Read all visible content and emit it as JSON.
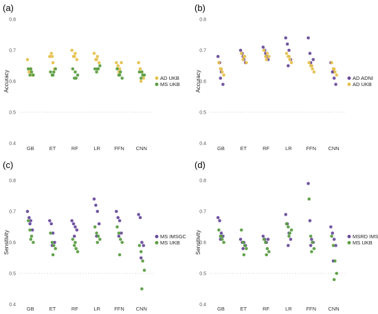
{
  "colors": {
    "purple": "#6a4c9c",
    "green": "#5c9e44",
    "gold": "#e6c14f",
    "grid": "#d9d9d9"
  },
  "chart_data": [
    {
      "panel": "(a)",
      "type": "scatter",
      "ylabel": "Accuracy",
      "ylim": [
        0.4,
        0.8
      ],
      "yticks": [
        "0.4",
        "0.5",
        "0.6",
        "0.7",
        "0.8"
      ],
      "categories": [
        "GB",
        "ET",
        "RF",
        "LR",
        "FFN",
        "CNN"
      ],
      "legend_position": "right",
      "series": [
        {
          "name": "AD UKB",
          "color": "gold",
          "values": [
            [
              0.67,
              0.63,
              0.64,
              0.62,
              0.63
            ],
            [
              0.68,
              0.69,
              0.66,
              0.64,
              0.68
            ],
            [
              0.7,
              0.68,
              0.69,
              0.67,
              0.68
            ],
            [
              0.69,
              0.67,
              0.68,
              0.66,
              0.67
            ],
            [
              0.66,
              0.65,
              0.64,
              0.66,
              0.63
            ],
            [
              0.66,
              0.64,
              0.63,
              0.61,
              0.6
            ]
          ]
        },
        {
          "name": "MS UKB",
          "color": "green",
          "values": [
            [
              0.64,
              0.62,
              0.63,
              0.62,
              0.64
            ],
            [
              0.63,
              0.62,
              0.63,
              0.64,
              0.62
            ],
            [
              0.64,
              0.61,
              0.61,
              0.62,
              0.63
            ],
            [
              0.64,
              0.63,
              0.64,
              0.65,
              0.64
            ],
            [
              0.64,
              0.62,
              0.63,
              0.61,
              0.62
            ],
            [
              0.63,
              0.61,
              0.62,
              0.62,
              0.63
            ]
          ]
        }
      ]
    },
    {
      "panel": "(b)",
      "type": "scatter",
      "ylabel": "Accuracy",
      "ylim": [
        0.4,
        0.8
      ],
      "yticks": [
        "0.4",
        "0.5",
        "0.6",
        "0.7",
        "0.8"
      ],
      "categories": [
        "GB",
        "ET",
        "RF",
        "LR",
        "FFN",
        "CNN"
      ],
      "legend_position": "right",
      "series": [
        {
          "name": "AD ADNI",
          "color": "purple",
          "values": [
            [
              0.68,
              0.66,
              0.63,
              0.59,
              0.61
            ],
            [
              0.7,
              0.69,
              0.67,
              0.66,
              0.68
            ],
            [
              0.71,
              0.7,
              0.68,
              0.67,
              0.69
            ],
            [
              0.74,
              0.72,
              0.7,
              0.67,
              0.65
            ],
            [
              0.74,
              0.69,
              0.65,
              0.67,
              0.66
            ],
            [
              0.66,
              0.63,
              0.61,
              0.59,
              0.63
            ]
          ]
        },
        {
          "name": "AD UKB",
          "color": "gold",
          "values": [
            [
              0.66,
              0.64,
              0.63,
              0.62,
              0.64
            ],
            [
              0.69,
              0.67,
              0.68,
              0.66,
              0.68
            ],
            [
              0.7,
              0.68,
              0.69,
              0.68,
              0.67
            ],
            [
              0.69,
              0.68,
              0.67,
              0.66,
              0.68
            ],
            [
              0.66,
              0.65,
              0.64,
              0.63,
              0.65
            ],
            [
              0.66,
              0.64,
              0.63,
              0.62,
              0.64
            ]
          ]
        }
      ]
    },
    {
      "panel": "(c)",
      "type": "scatter",
      "ylabel": "Sensitivity",
      "ylim": [
        0.4,
        0.8
      ],
      "yticks": [
        "0.4",
        "0.5",
        "0.6",
        "0.7",
        "0.8"
      ],
      "categories": [
        "GB",
        "ET",
        "RF",
        "LR",
        "FFN",
        "CNN"
      ],
      "legend_position": "right",
      "series": [
        {
          "name": "MS IMSGC",
          "color": "purple",
          "values": [
            [
              0.7,
              0.68,
              0.67,
              0.64,
              0.66
            ],
            [
              0.67,
              0.66,
              0.63,
              0.6,
              0.59
            ],
            [
              0.67,
              0.66,
              0.65,
              0.64,
              0.62
            ],
            [
              0.74,
              0.72,
              0.7,
              0.66,
              0.62
            ],
            [
              0.7,
              0.68,
              0.67,
              0.63,
              0.62
            ],
            [
              0.69,
              0.68,
              0.6,
              0.59,
              0.55
            ]
          ]
        },
        {
          "name": "MS UKB",
          "color": "green",
          "values": [
            [
              0.67,
              0.64,
              0.62,
              0.6,
              0.61
            ],
            [
              0.63,
              0.6,
              0.59,
              0.58,
              0.56
            ],
            [
              0.61,
              0.59,
              0.58,
              0.57,
              0.6
            ],
            [
              0.65,
              0.63,
              0.62,
              0.61,
              0.6
            ],
            [
              0.65,
              0.63,
              0.61,
              0.6,
              0.56
            ],
            [
              0.59,
              0.57,
              0.54,
              0.51,
              0.45
            ]
          ]
        }
      ]
    },
    {
      "panel": "(d)",
      "type": "scatter",
      "ylabel": "Sensitivity",
      "ylim": [
        0.4,
        0.8
      ],
      "yticks": [
        "0.4",
        "0.5",
        "0.6",
        "0.7",
        "0.8"
      ],
      "categories": [
        "GB",
        "ET",
        "RF",
        "LR",
        "FFN",
        "CNN"
      ],
      "legend_position": "right",
      "series": [
        {
          "name": "MSRD IMSGC",
          "color": "purple",
          "values": [
            [
              0.68,
              0.67,
              0.63,
              0.62,
              0.61
            ],
            [
              0.61,
              0.6,
              0.6,
              0.59,
              0.58
            ],
            [
              0.62,
              0.61,
              0.6,
              0.61,
              0.6
            ],
            [
              0.69,
              0.66,
              0.63,
              0.61,
              0.59
            ],
            [
              0.79,
              0.67,
              0.61,
              0.6,
              0.59
            ],
            [
              0.65,
              0.63,
              0.61,
              0.59,
              0.54
            ]
          ]
        },
        {
          "name": "MS UKB",
          "color": "green",
          "values": [
            [
              0.64,
              0.62,
              0.61,
              0.6,
              0.62
            ],
            [
              0.64,
              0.6,
              0.59,
              0.58,
              0.56
            ],
            [
              0.61,
              0.6,
              0.58,
              0.57,
              0.56
            ],
            [
              0.66,
              0.65,
              0.63,
              0.64,
              0.62
            ],
            [
              0.74,
              0.62,
              0.6,
              0.58,
              0.57
            ],
            [
              0.62,
              0.59,
              0.54,
              0.5,
              0.48
            ]
          ]
        }
      ]
    }
  ]
}
